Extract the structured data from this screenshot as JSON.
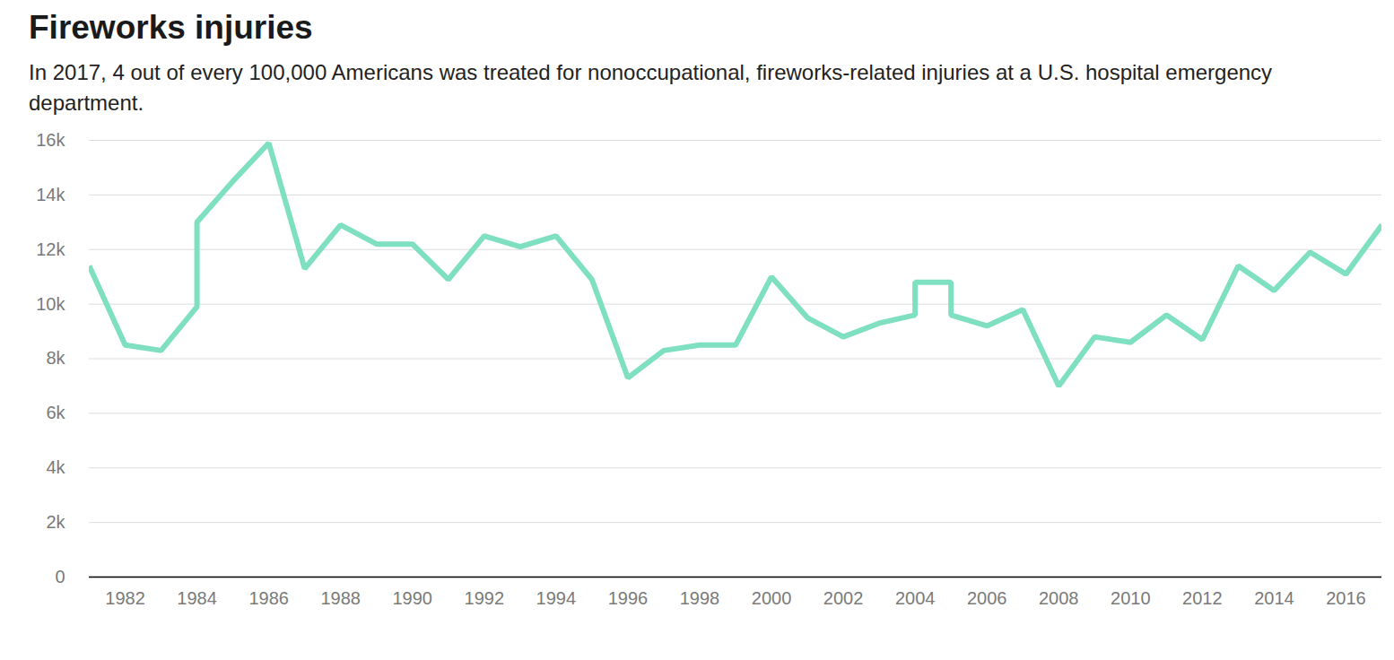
{
  "chart_data": {
    "type": "line",
    "title": "Fireworks injuries",
    "subtitle": "In 2017, 4 out of every 100,000 Americans was treated for nonoccupational, fireworks-related injuries at a U.S. hospital emergency department.",
    "x": [
      1981,
      1982,
      1983,
      1984,
      1984,
      1985,
      1986,
      1987,
      1988,
      1989,
      1990,
      1991,
      1992,
      1993,
      1994,
      1995,
      1996,
      1997,
      1998,
      1999,
      2000,
      2001,
      2002,
      2003,
      2004,
      2004,
      2005,
      2005,
      2006,
      2007,
      2008,
      2009,
      2010,
      2011,
      2012,
      2013,
      2014,
      2015,
      2016,
      2017
    ],
    "values": [
      11400,
      8500,
      8300,
      9900,
      13000,
      14500,
      15900,
      11300,
      12900,
      12200,
      12200,
      10900,
      12500,
      12100,
      12500,
      10900,
      7300,
      8300,
      8500,
      8500,
      11000,
      9500,
      8800,
      9300,
      9600,
      10800,
      10800,
      9600,
      9200,
      9800,
      7000,
      8800,
      8600,
      9600,
      8700,
      11400,
      10500,
      11900,
      11100,
      12900
    ],
    "color": "#7fdfc1",
    "xlim": [
      1981,
      2017
    ],
    "xticks": [
      1982,
      1984,
      1986,
      1988,
      1990,
      1992,
      1994,
      1996,
      1998,
      2000,
      2002,
      2004,
      2006,
      2008,
      2010,
      2012,
      2014,
      2016
    ],
    "ylim": [
      0,
      16000
    ],
    "yticks": [
      0,
      {
        "value": 2000,
        "label": "2k"
      },
      {
        "value": 4000,
        "label": "4k"
      },
      {
        "value": 6000,
        "label": "6k"
      },
      {
        "value": 8000,
        "label": "8k"
      },
      {
        "value": 10000,
        "label": "10k"
      },
      {
        "value": 12000,
        "label": "12k"
      },
      {
        "value": 14000,
        "label": "14k"
      },
      {
        "value": 16000,
        "label": "16k"
      }
    ],
    "grid": true
  }
}
